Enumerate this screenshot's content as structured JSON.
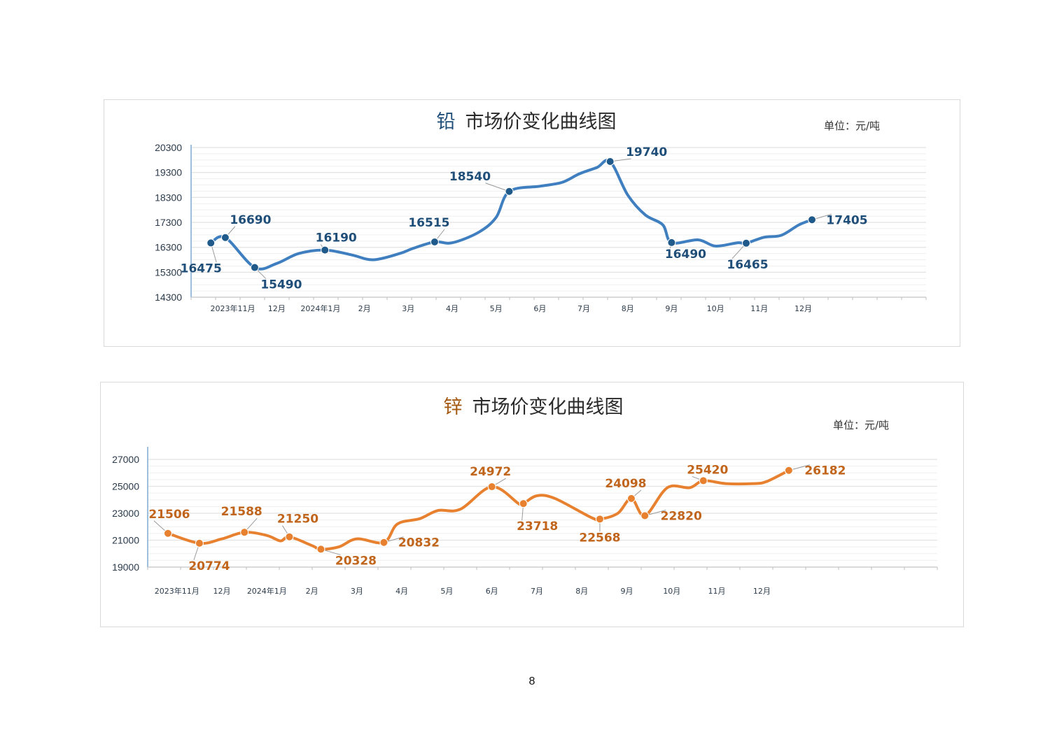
{
  "page_number": "8",
  "colors": {
    "lead_line": "#3f7fbf",
    "lead_marker": "#1f5a8a",
    "lead_label": "#1f4e79",
    "zinc_line": "#e8812f",
    "zinc_label": "#c0651b",
    "grid": "#e2e2e2",
    "axis": "#9dbedc"
  },
  "chart_data": [
    {
      "type": "line",
      "title_metal": "铅",
      "title_rest": "市场价变化曲线图",
      "unit_label": "单位：元/吨",
      "xlabel": "",
      "ylabel": "",
      "ylim": [
        14300,
        20300
      ],
      "yticks": [
        20300,
        19300,
        18300,
        17300,
        16300,
        15300,
        14300
      ],
      "x_ticks": [
        {
          "label": "2023年11月",
          "x": 1
        },
        {
          "label": "12月",
          "x": 2
        },
        {
          "label": "2024年1月",
          "x": 3
        },
        {
          "label": "2月",
          "x": 4
        },
        {
          "label": "3月",
          "x": 5
        },
        {
          "label": "4月",
          "x": 6
        },
        {
          "label": "5月",
          "x": 7
        },
        {
          "label": "6月",
          "x": 8
        },
        {
          "label": "7月",
          "x": 9
        },
        {
          "label": "8月",
          "x": 10
        },
        {
          "label": "9月",
          "x": 11
        },
        {
          "label": "10月",
          "x": 12
        },
        {
          "label": "11月",
          "x": 13
        },
        {
          "label": "12月",
          "x": 14
        }
      ],
      "xlim": [
        0.05,
        16.8
      ],
      "grid": true,
      "series": [
        {
          "points": [
            {
              "x": 0.5,
              "y": 16475
            },
            {
              "x": 0.83,
              "y": 16690
            },
            {
              "x": 1.5,
              "y": 15490
            },
            {
              "x": 2.0,
              "y": 15650
            },
            {
              "x": 2.5,
              "y": 16050
            },
            {
              "x": 3.1,
              "y": 16190
            },
            {
              "x": 3.7,
              "y": 16000
            },
            {
              "x": 4.2,
              "y": 15800
            },
            {
              "x": 4.8,
              "y": 16050
            },
            {
              "x": 5.1,
              "y": 16250
            },
            {
              "x": 5.6,
              "y": 16515
            },
            {
              "x": 6.0,
              "y": 16480
            },
            {
              "x": 6.6,
              "y": 16900
            },
            {
              "x": 7.0,
              "y": 17500
            },
            {
              "x": 7.3,
              "y": 18540
            },
            {
              "x": 8.0,
              "y": 18750
            },
            {
              "x": 8.5,
              "y": 18900
            },
            {
              "x": 8.9,
              "y": 19250
            },
            {
              "x": 9.3,
              "y": 19500
            },
            {
              "x": 9.6,
              "y": 19740
            },
            {
              "x": 10.0,
              "y": 18400
            },
            {
              "x": 10.4,
              "y": 17600
            },
            {
              "x": 10.8,
              "y": 17200
            },
            {
              "x": 11.0,
              "y": 16490
            },
            {
              "x": 11.6,
              "y": 16600
            },
            {
              "x": 12.0,
              "y": 16350
            },
            {
              "x": 12.5,
              "y": 16480
            },
            {
              "x": 12.7,
              "y": 16465
            },
            {
              "x": 13.1,
              "y": 16700
            },
            {
              "x": 13.5,
              "y": 16780
            },
            {
              "x": 13.9,
              "y": 17200
            },
            {
              "x": 14.2,
              "y": 17405
            }
          ],
          "labeled": [
            {
              "x": 0.5,
              "y": 16475,
              "label": "16475",
              "dx": -14,
              "dy": 42
            },
            {
              "x": 0.83,
              "y": 16690,
              "label": "16690",
              "dx": 36,
              "dy": -20
            },
            {
              "x": 1.5,
              "y": 15490,
              "label": "15490",
              "dx": 38,
              "dy": 30
            },
            {
              "x": 3.1,
              "y": 16190,
              "label": "16190",
              "dx": 16,
              "dy": -12
            },
            {
              "x": 5.6,
              "y": 16515,
              "label": "16515",
              "dx": -8,
              "dy": -22
            },
            {
              "x": 7.3,
              "y": 18540,
              "label": "18540",
              "dx": -56,
              "dy": -16
            },
            {
              "x": 9.6,
              "y": 19740,
              "label": "19740",
              "dx": 52,
              "dy": -8
            },
            {
              "x": 11.0,
              "y": 16490,
              "label": "16490",
              "dx": 20,
              "dy": 22
            },
            {
              "x": 12.7,
              "y": 16465,
              "label": "16465",
              "dx": 2,
              "dy": 36
            },
            {
              "x": 14.2,
              "y": 17405,
              "label": "17405",
              "dx": 50,
              "dy": 6
            }
          ]
        }
      ]
    },
    {
      "type": "line",
      "title_metal": "锌",
      "title_rest": "市场价变化曲线图",
      "unit_label": "单位：元/吨",
      "xlabel": "",
      "ylabel": "",
      "ylim": [
        19000,
        27000
      ],
      "yticks": [
        27000,
        25000,
        23000,
        21000,
        19000
      ],
      "x_ticks": [
        {
          "label": "2023年11月",
          "x": 1
        },
        {
          "label": "12月",
          "x": 2
        },
        {
          "label": "2024年1月",
          "x": 3
        },
        {
          "label": "2月",
          "x": 4
        },
        {
          "label": "3月",
          "x": 5
        },
        {
          "label": "4月",
          "x": 6
        },
        {
          "label": "5月",
          "x": 7
        },
        {
          "label": "6月",
          "x": 8
        },
        {
          "label": "7月",
          "x": 9
        },
        {
          "label": "8月",
          "x": 10
        },
        {
          "label": "9月",
          "x": 11
        },
        {
          "label": "10月",
          "x": 12
        },
        {
          "label": "11月",
          "x": 13
        },
        {
          "label": "12月",
          "x": 14
        }
      ],
      "xlim": [
        0.35,
        17.9
      ],
      "grid": true,
      "series": [
        {
          "points": [
            {
              "x": 0.8,
              "y": 21506
            },
            {
              "x": 1.5,
              "y": 20774
            },
            {
              "x": 2.0,
              "y": 21100
            },
            {
              "x": 2.5,
              "y": 21588
            },
            {
              "x": 3.0,
              "y": 21350
            },
            {
              "x": 3.3,
              "y": 20950
            },
            {
              "x": 3.5,
              "y": 21250
            },
            {
              "x": 4.0,
              "y": 20600
            },
            {
              "x": 4.2,
              "y": 20328
            },
            {
              "x": 4.6,
              "y": 20500
            },
            {
              "x": 5.0,
              "y": 21100
            },
            {
              "x": 5.6,
              "y": 20832
            },
            {
              "x": 5.9,
              "y": 22200
            },
            {
              "x": 6.4,
              "y": 22600
            },
            {
              "x": 6.8,
              "y": 23200
            },
            {
              "x": 7.3,
              "y": 23300
            },
            {
              "x": 8.0,
              "y": 24972
            },
            {
              "x": 8.6,
              "y": 23700
            },
            {
              "x": 8.7,
              "y": 23718
            },
            {
              "x": 9.0,
              "y": 24300
            },
            {
              "x": 9.4,
              "y": 24100
            },
            {
              "x": 10.2,
              "y": 22700
            },
            {
              "x": 10.4,
              "y": 22568
            },
            {
              "x": 10.8,
              "y": 23000
            },
            {
              "x": 11.1,
              "y": 24098
            },
            {
              "x": 11.4,
              "y": 22820
            },
            {
              "x": 11.9,
              "y": 24900
            },
            {
              "x": 12.4,
              "y": 24900
            },
            {
              "x": 12.7,
              "y": 25420
            },
            {
              "x": 13.2,
              "y": 25200
            },
            {
              "x": 13.8,
              "y": 25200
            },
            {
              "x": 14.1,
              "y": 25350
            },
            {
              "x": 14.6,
              "y": 26182
            }
          ],
          "labeled": [
            {
              "x": 0.8,
              "y": 21506,
              "label": "21506",
              "dx": 2,
              "dy": -22
            },
            {
              "x": 1.5,
              "y": 20774,
              "label": "20774",
              "dx": 14,
              "dy": 38
            },
            {
              "x": 2.5,
              "y": 21588,
              "label": "21588",
              "dx": -4,
              "dy": -24
            },
            {
              "x": 3.5,
              "y": 21250,
              "label": "21250",
              "dx": 12,
              "dy": -20
            },
            {
              "x": 4.2,
              "y": 20328,
              "label": "20328",
              "dx": 50,
              "dy": 22
            },
            {
              "x": 5.6,
              "y": 20832,
              "label": "20832",
              "dx": 50,
              "dy": 6
            },
            {
              "x": 8.0,
              "y": 24972,
              "label": "24972",
              "dx": -2,
              "dy": -16
            },
            {
              "x": 8.7,
              "y": 23718,
              "label": "23718",
              "dx": 20,
              "dy": 38
            },
            {
              "x": 10.4,
              "y": 22568,
              "label": "22568",
              "dx": 0,
              "dy": 32
            },
            {
              "x": 11.1,
              "y": 24098,
              "label": "24098",
              "dx": -8,
              "dy": -16
            },
            {
              "x": 11.4,
              "y": 22820,
              "label": "22820",
              "dx": 52,
              "dy": 6
            },
            {
              "x": 12.7,
              "y": 25420,
              "label": "25420",
              "dx": 6,
              "dy": -10
            },
            {
              "x": 14.6,
              "y": 26182,
              "label": "26182",
              "dx": 52,
              "dy": 6
            }
          ]
        }
      ]
    }
  ]
}
